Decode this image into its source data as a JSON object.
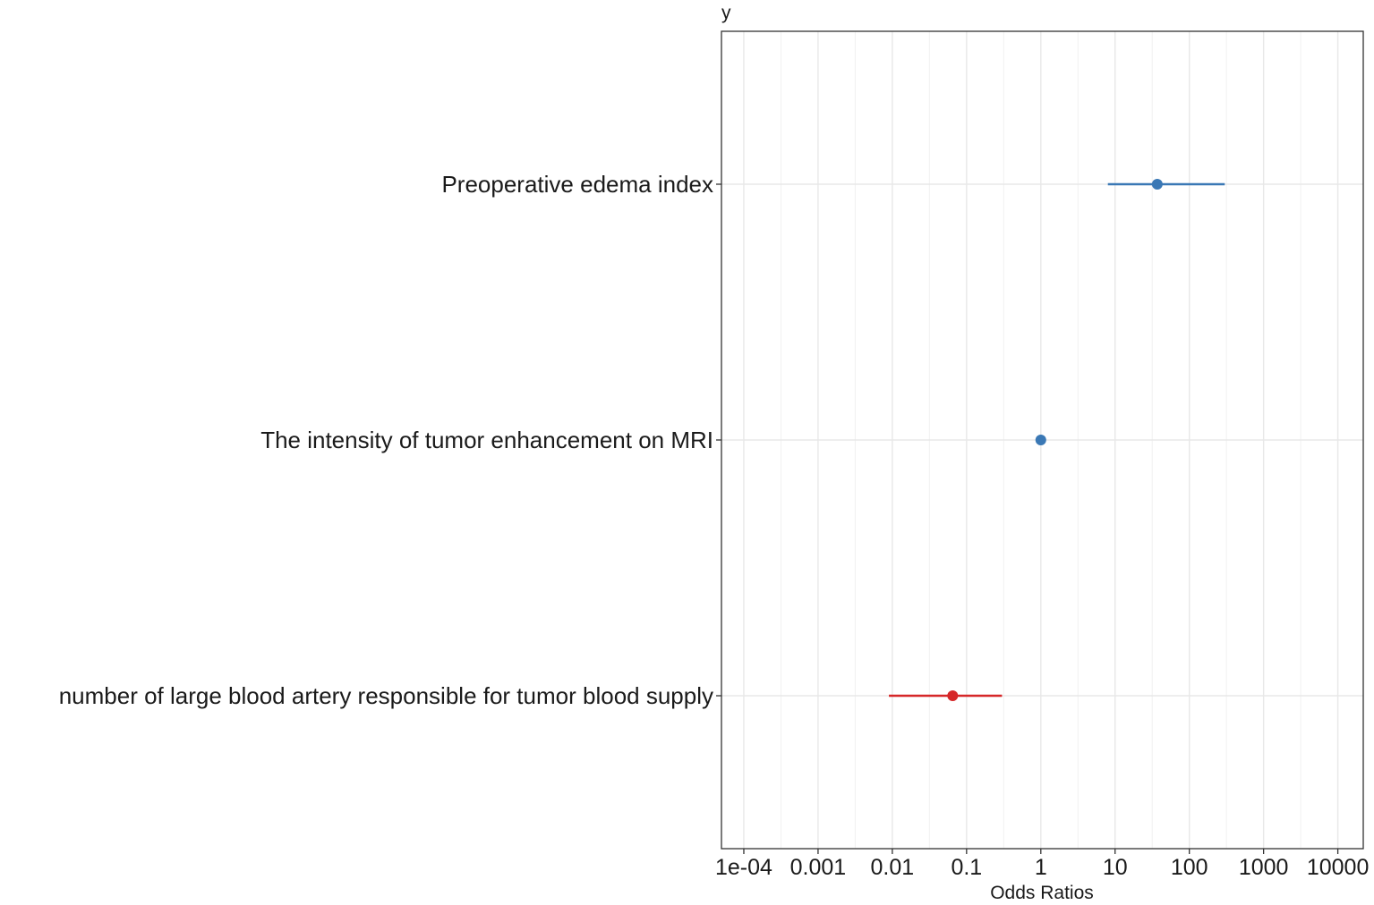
{
  "chart_data": {
    "type": "scatter",
    "subtype": "forest-plot",
    "title": "",
    "corner_label": "y",
    "xlabel": "Odds Ratios",
    "ylabel": "",
    "x_scale": "log10",
    "xlim": [
      5e-05,
      22000
    ],
    "x_ticks": [
      0.0001,
      0.001,
      0.01,
      0.1,
      1,
      10,
      100,
      1000,
      10000
    ],
    "x_tick_labels": [
      "1e-04",
      "0.001",
      "0.01",
      "0.1",
      "1",
      "10",
      "100",
      "1000",
      "10000"
    ],
    "grid": true,
    "legend": "none",
    "rows": [
      {
        "label": "Preoperative edema index",
        "estimate": 37,
        "ci_low": 8,
        "ci_high": 300,
        "color": "#3a78b5"
      },
      {
        "label": "The intensity of tumor enhancement on MRI",
        "estimate": 1.0,
        "ci_low": 0.97,
        "ci_high": 1.03,
        "color": "#3a78b5"
      },
      {
        "label": "number of large blood artery responsible for tumor blood supply",
        "estimate": 0.065,
        "ci_low": 0.009,
        "ci_high": 0.3,
        "color": "#d62728"
      }
    ]
  }
}
